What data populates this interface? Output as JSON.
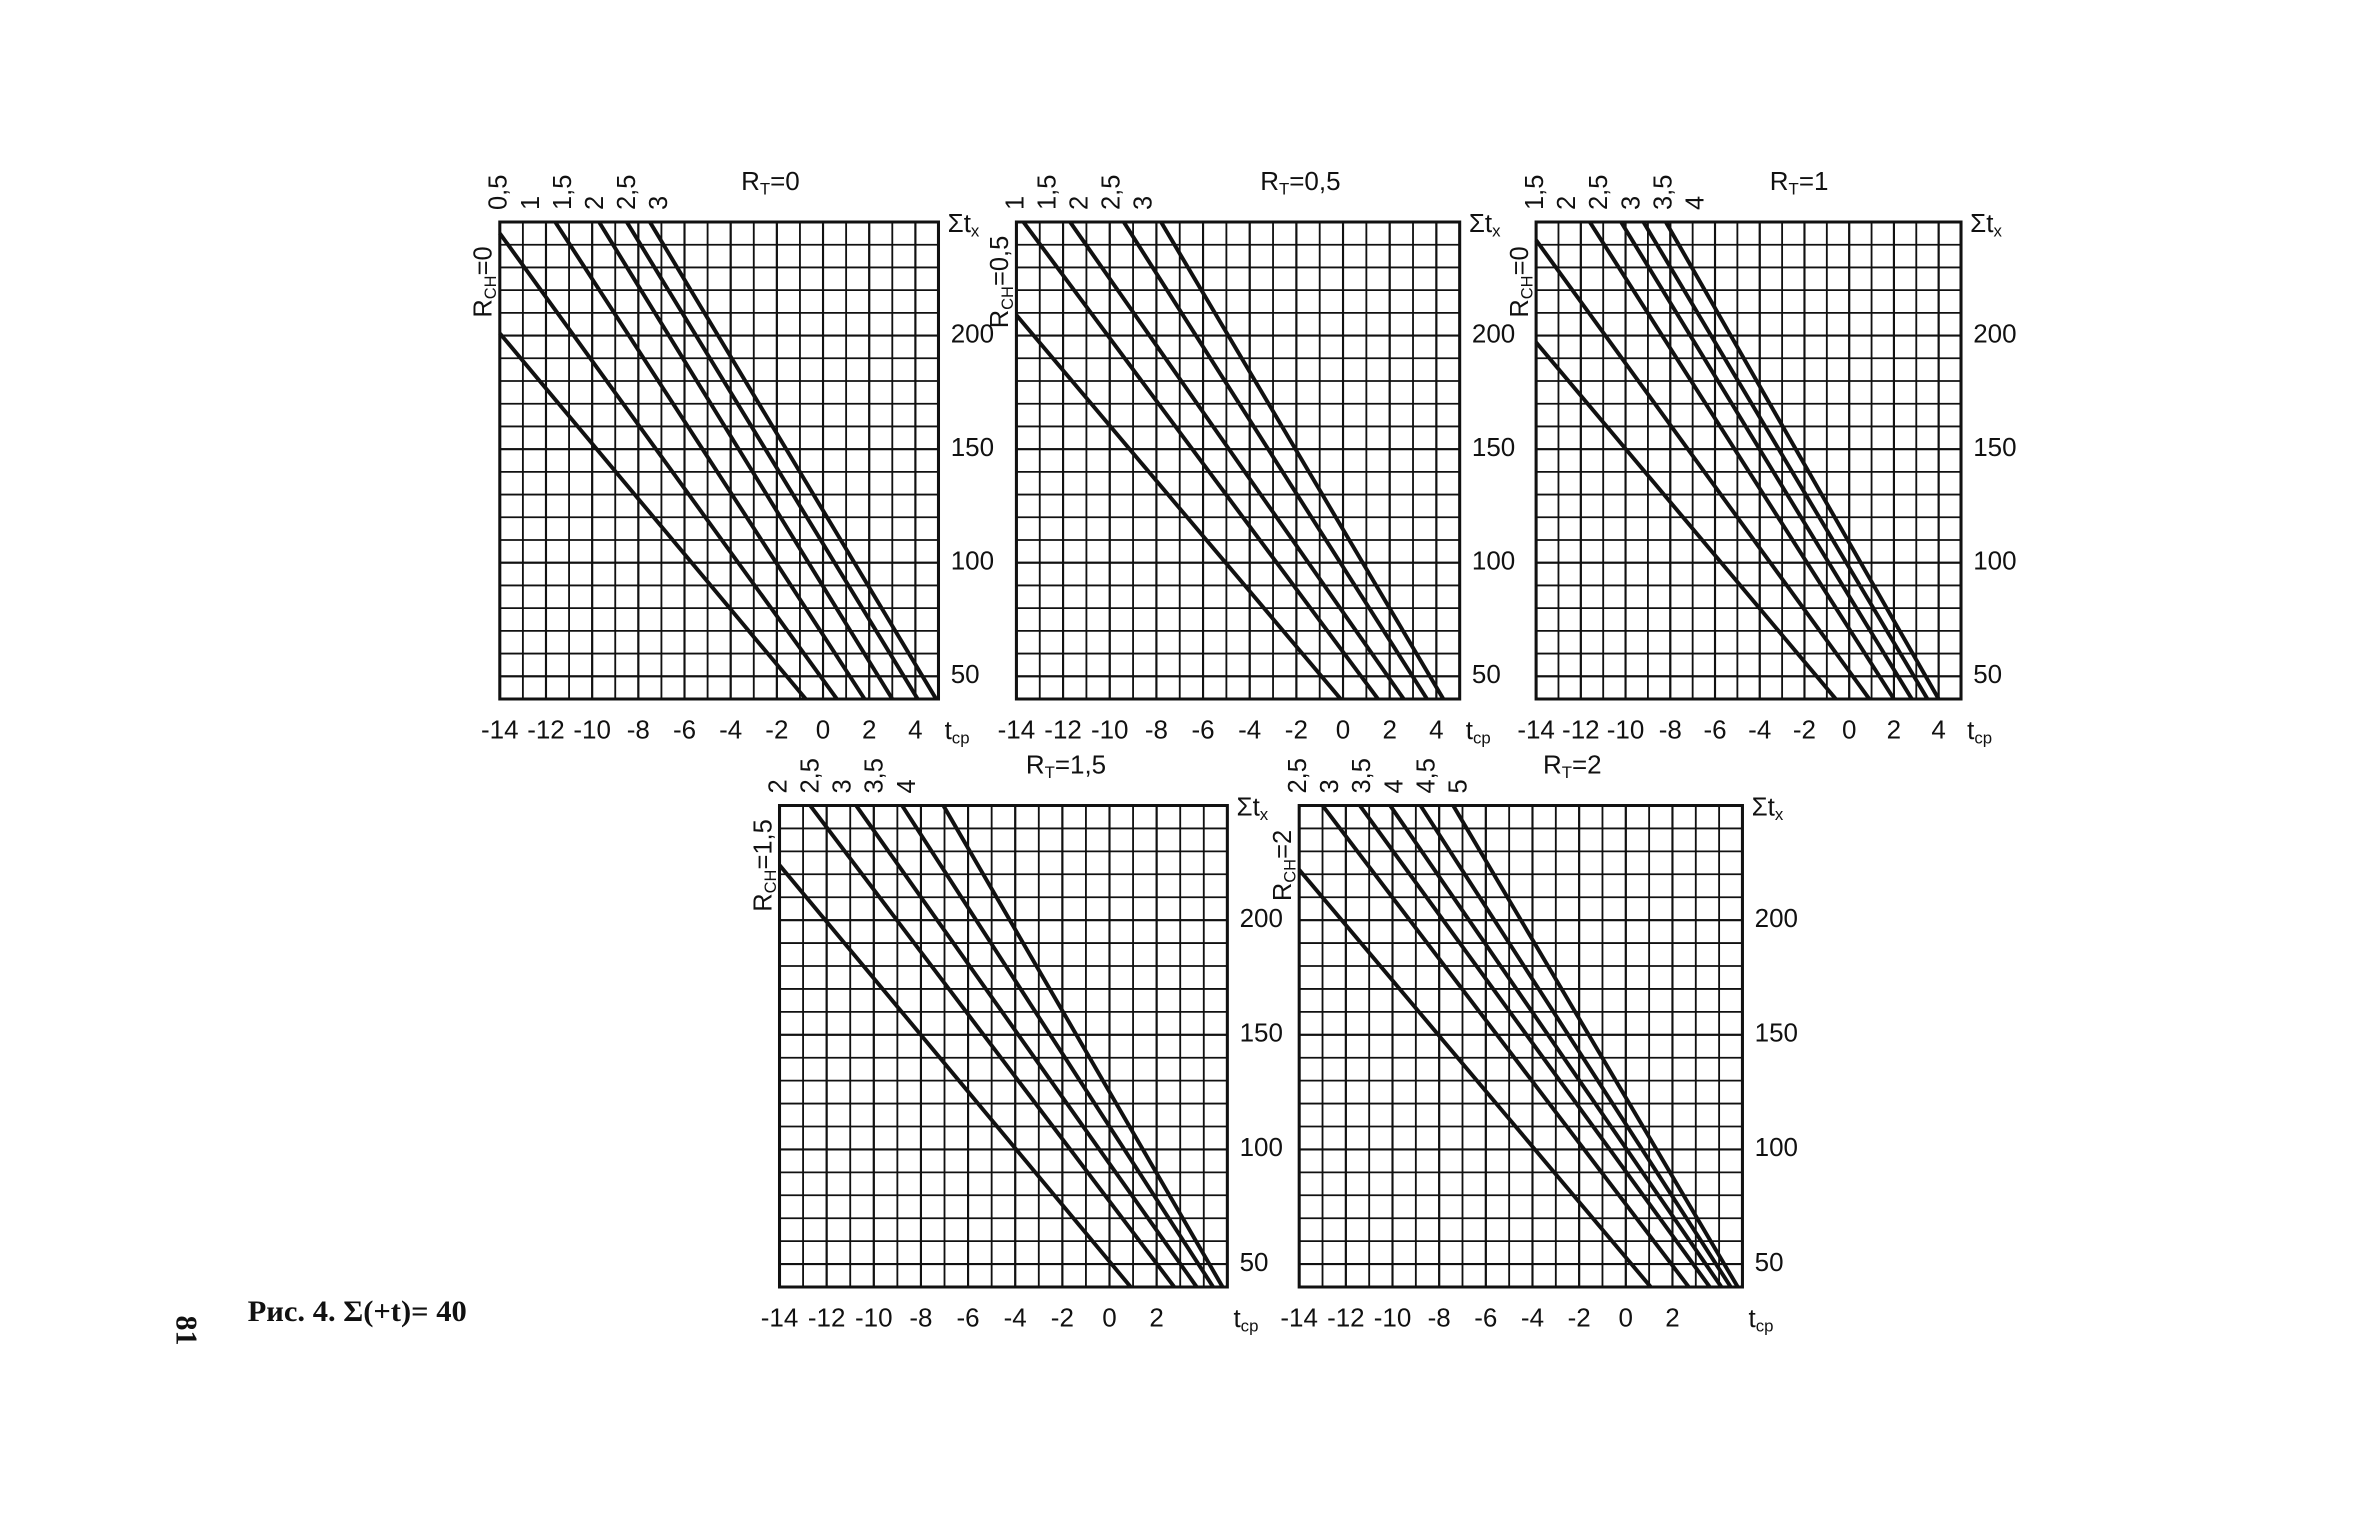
{
  "caption": "Рис. 4.  Σ(+t)= 40",
  "page_number": "81",
  "chart_data": [
    {
      "type": "line",
      "title": [
        "R",
        "T",
        "=0"
      ],
      "side_label": [
        "R",
        "CH",
        "=0"
      ],
      "y_label": [
        "Σt",
        "x"
      ],
      "x_label": [
        "t",
        "cp"
      ],
      "xlim": [
        -14,
        5
      ],
      "ylim": [
        40,
        250
      ],
      "xticks": [
        -14,
        -12,
        -10,
        -8,
        -6,
        -4,
        -2,
        0,
        2,
        4
      ],
      "yticks": [
        50,
        100,
        150,
        200
      ],
      "grid": true,
      "color": "#111",
      "series": [
        {
          "name": "0,5",
          "x": [
            -14,
            -0.75
          ],
          "values": [
            201,
            40
          ]
        },
        {
          "name": "1",
          "x": [
            -14,
            0.6
          ],
          "values": [
            245,
            40
          ]
        },
        {
          "name": "1,5",
          "x": [
            -11.6,
            1.8
          ],
          "values": [
            250,
            40
          ]
        },
        {
          "name": "2",
          "x": [
            -9.7,
            3
          ],
          "values": [
            250,
            40
          ]
        },
        {
          "name": "2,5",
          "x": [
            -8.5,
            4.1
          ],
          "values": [
            250,
            40
          ]
        },
        {
          "name": "3",
          "x": [
            -7.5,
            4.9
          ],
          "values": [
            250,
            40
          ]
        }
      ]
    },
    {
      "type": "line",
      "title": [
        "R",
        "T",
        "=0,5"
      ],
      "side_label": [
        "R",
        "CH",
        "=0,5"
      ],
      "y_label": [
        "Σt",
        "x"
      ],
      "x_label": [
        "t",
        "cp"
      ],
      "xlim": [
        -14,
        5
      ],
      "ylim": [
        40,
        250
      ],
      "xticks": [
        -14,
        -12,
        -10,
        -8,
        -6,
        -4,
        -2,
        0,
        2,
        4
      ],
      "yticks": [
        50,
        100,
        150,
        200
      ],
      "grid": true,
      "color": "#111",
      "series": [
        {
          "name": "1",
          "x": [
            -14,
            -0.1
          ],
          "values": [
            209,
            40
          ]
        },
        {
          "name": "1,5",
          "x": [
            -13.7,
            1.5
          ],
          "values": [
            250,
            40
          ]
        },
        {
          "name": "2",
          "x": [
            -11.7,
            2.6
          ],
          "values": [
            250,
            40
          ]
        },
        {
          "name": "2,5",
          "x": [
            -9.4,
            3.6
          ],
          "values": [
            250,
            40
          ]
        },
        {
          "name": "3",
          "x": [
            -7.8,
            4.3
          ],
          "values": [
            250,
            40
          ]
        }
      ]
    },
    {
      "type": "line",
      "title": [
        "R",
        "T",
        "=1"
      ],
      "side_label": [
        "R",
        "CH",
        "=0"
      ],
      "y_label": [
        "Σt",
        "x"
      ],
      "x_label": [
        "t",
        "cp"
      ],
      "xlim": [
        -14,
        5
      ],
      "ylim": [
        40,
        250
      ],
      "xticks": [
        -14,
        -12,
        -10,
        -8,
        -6,
        -4,
        -2,
        0,
        2,
        4
      ],
      "yticks": [
        50,
        100,
        150,
        200
      ],
      "grid": true,
      "color": "#111",
      "series": [
        {
          "name": "1,5",
          "x": [
            -14,
            -0.6
          ],
          "values": [
            197,
            40
          ]
        },
        {
          "name": "2",
          "x": [
            -14,
            0.9
          ],
          "values": [
            242,
            40
          ]
        },
        {
          "name": "2,5",
          "x": [
            -11.6,
            2
          ],
          "values": [
            250,
            40
          ]
        },
        {
          "name": "3",
          "x": [
            -10.2,
            2.8
          ],
          "values": [
            250,
            40
          ]
        },
        {
          "name": "3,5",
          "x": [
            -9.2,
            3.5
          ],
          "values": [
            250,
            40
          ]
        },
        {
          "name": "4",
          "x": [
            -8.2,
            4
          ],
          "values": [
            250,
            40
          ]
        }
      ]
    },
    {
      "type": "line",
      "title": [
        "R",
        "T",
        "=1,5"
      ],
      "side_label": [
        "R",
        "CH",
        "=1,5"
      ],
      "y_label": [
        "Σt",
        "x"
      ],
      "x_label": [
        "t",
        "cp"
      ],
      "xlim": [
        -14,
        5
      ],
      "ylim": [
        40,
        250
      ],
      "xticks": [
        -14,
        -12,
        -10,
        -8,
        -6,
        -4,
        -2,
        0,
        2
      ],
      "yticks": [
        50,
        100,
        150,
        200
      ],
      "grid": true,
      "color": "#111",
      "series": [
        {
          "name": "2",
          "x": [
            -14,
            0.9
          ],
          "values": [
            224,
            40
          ]
        },
        {
          "name": "2,5",
          "x": [
            -12.7,
            2.75
          ],
          "values": [
            250,
            40
          ]
        },
        {
          "name": "3",
          "x": [
            -10.75,
            3.7
          ],
          "values": [
            250,
            40
          ]
        },
        {
          "name": "3,5",
          "x": [
            -8.8,
            4.4
          ],
          "values": [
            250,
            40
          ]
        },
        {
          "name": "4",
          "x": [
            -7.05,
            4.8
          ],
          "values": [
            250,
            40
          ]
        }
      ]
    },
    {
      "type": "line",
      "title": [
        "R",
        "T",
        "=2"
      ],
      "side_label": [
        "R",
        "CH",
        "=2"
      ],
      "y_label": [
        "Σt",
        "x"
      ],
      "x_label": [
        "t",
        "cp"
      ],
      "xlim": [
        -14,
        5
      ],
      "ylim": [
        40,
        250
      ],
      "xticks": [
        -14,
        -12,
        -10,
        -8,
        -6,
        -4,
        -2,
        0,
        2
      ],
      "yticks": [
        50,
        100,
        150,
        200
      ],
      "grid": true,
      "color": "#111",
      "series": [
        {
          "name": "2,5",
          "x": [
            -14,
            1.07
          ],
          "values": [
            222,
            40
          ]
        },
        {
          "name": "3",
          "x": [
            -13,
            2.7
          ],
          "values": [
            250,
            40
          ]
        },
        {
          "name": "3,5",
          "x": [
            -11.4,
            3.6
          ],
          "values": [
            250,
            40
          ]
        },
        {
          "name": "4",
          "x": [
            -10.1,
            4.1
          ],
          "values": [
            250,
            40
          ]
        },
        {
          "name": "4,5",
          "x": [
            -8.8,
            4.5
          ],
          "values": [
            250,
            40
          ]
        },
        {
          "name": "5",
          "x": [
            -7.4,
            4.8
          ],
          "values": [
            250,
            40
          ]
        }
      ]
    }
  ]
}
